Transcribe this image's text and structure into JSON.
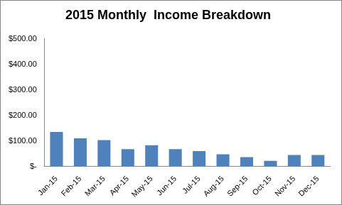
{
  "chart_data": {
    "type": "bar",
    "title": "2015 Monthly  Income Breakdown",
    "categories": [
      "Jan-15",
      "Feb-15",
      "Mar-15",
      "Apr-15",
      "May-15",
      "Jun-15",
      "Jul-15",
      "Aug-15",
      "Sep-15",
      "Oct-15",
      "Nov-15",
      "Dec-15"
    ],
    "values": [
      135,
      110,
      103,
      68,
      83,
      68,
      60,
      48,
      37,
      22,
      45,
      45
    ],
    "color": "#4f81bd",
    "ylim": [
      0,
      500
    ],
    "yticks": [
      {
        "value": 0,
        "label": "$-"
      },
      {
        "value": 100,
        "label": "$100.00"
      },
      {
        "value": 200,
        "label": "$200.00"
      },
      {
        "value": 300,
        "label": "$300.00"
      },
      {
        "value": 400,
        "label": "$400.00"
      },
      {
        "value": 500,
        "label": "$500.00"
      }
    ],
    "grid": false
  }
}
